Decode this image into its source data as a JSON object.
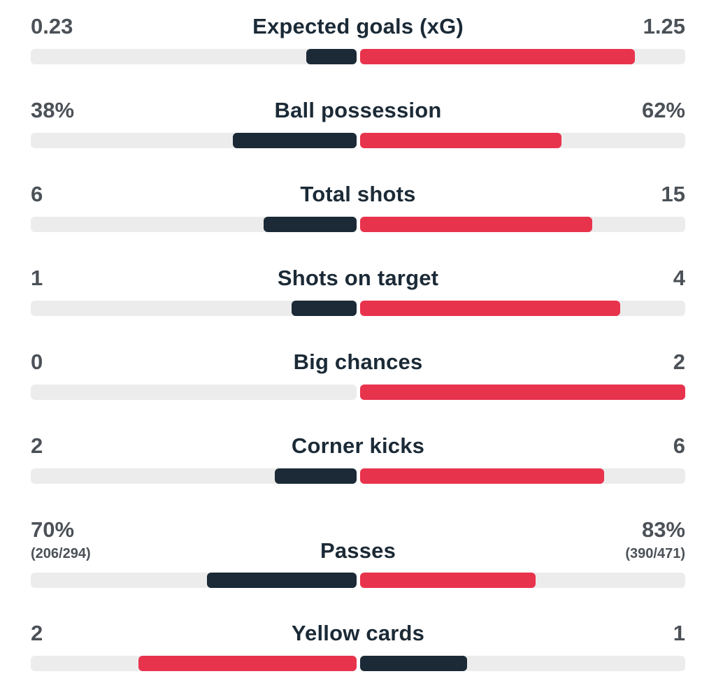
{
  "colors": {
    "dark": "#1b2a36",
    "red": "#e8334d",
    "track": "#ececec",
    "value_text": "#4b5157"
  },
  "stats": [
    {
      "label": "Expected goals (xG)",
      "home": "0.23",
      "away": "1.25",
      "home_fill": 0.155,
      "away_fill": 0.845,
      "home_color": "dark",
      "away_color": "red"
    },
    {
      "label": "Ball possession",
      "home": "38%",
      "away": "62%",
      "home_fill": 0.38,
      "away_fill": 0.62,
      "home_color": "dark",
      "away_color": "red"
    },
    {
      "label": "Total shots",
      "home": "6",
      "away": "15",
      "home_fill": 0.285,
      "away_fill": 0.715,
      "home_color": "dark",
      "away_color": "red"
    },
    {
      "label": "Shots on target",
      "home": "1",
      "away": "4",
      "home_fill": 0.2,
      "away_fill": 0.8,
      "home_color": "dark",
      "away_color": "red"
    },
    {
      "label": "Big chances",
      "home": "0",
      "away": "2",
      "home_fill": 0.0,
      "away_fill": 1.0,
      "home_color": "dark",
      "away_color": "red"
    },
    {
      "label": "Corner kicks",
      "home": "2",
      "away": "6",
      "home_fill": 0.25,
      "away_fill": 0.75,
      "home_color": "dark",
      "away_color": "red"
    },
    {
      "label": "Passes",
      "home": "70%",
      "away": "83%",
      "home_sub": "(206/294)",
      "away_sub": "(390/471)",
      "home_fill": 0.46,
      "away_fill": 0.54,
      "home_color": "dark",
      "away_color": "red"
    },
    {
      "label": "Yellow cards",
      "home": "2",
      "away": "1",
      "home_fill": 0.67,
      "away_fill": 0.33,
      "home_color": "red",
      "away_color": "dark"
    }
  ]
}
